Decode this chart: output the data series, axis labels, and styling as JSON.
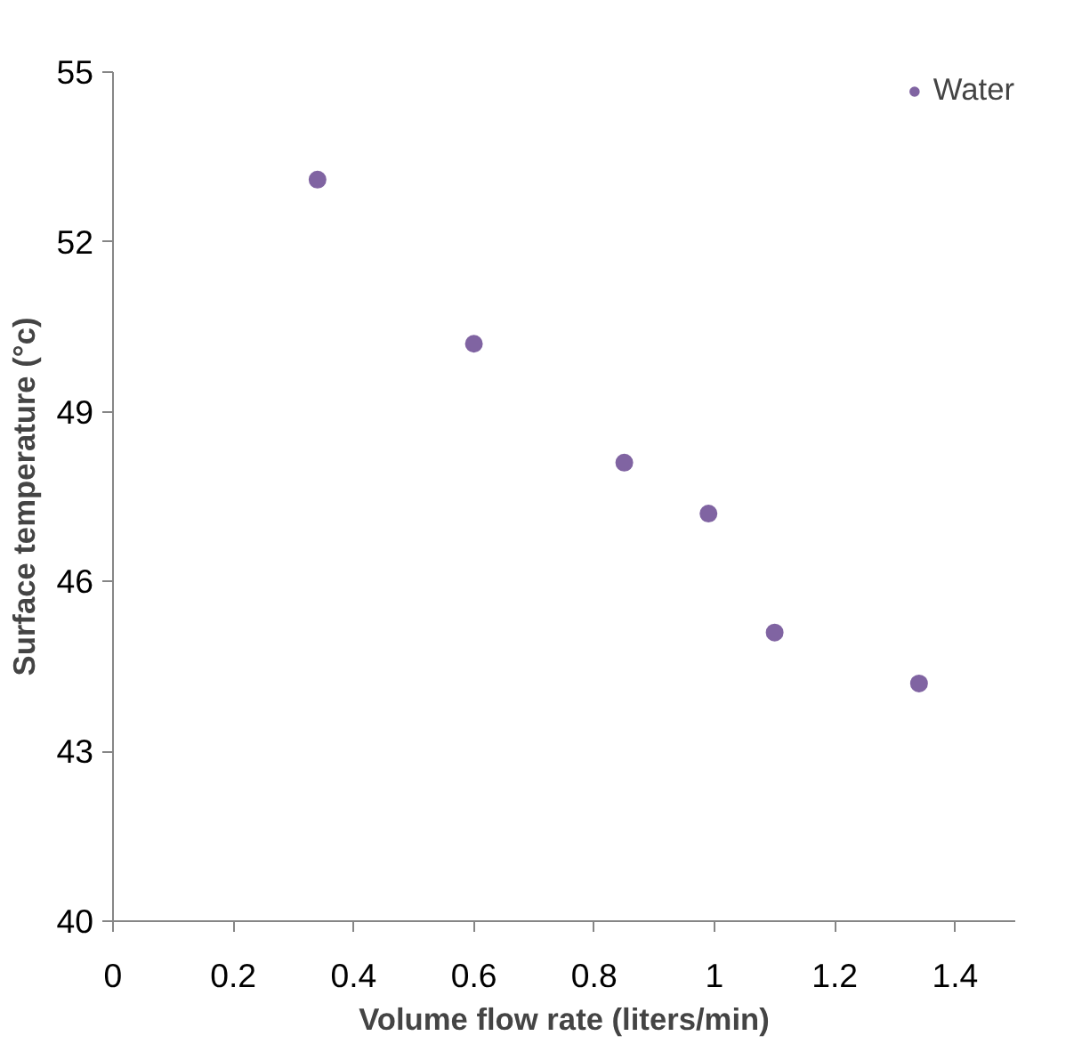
{
  "chart_data": {
    "type": "scatter",
    "xlabel": "Volume flow rate (liters/min)",
    "ylabel": "Surface temperature (°c)",
    "x": [
      0.34,
      0.6,
      0.85,
      0.99,
      1.1,
      1.34
    ],
    "series": [
      {
        "name": "Water",
        "color": "#8064a2",
        "values": [
          53.1,
          50.2,
          48.1,
          47.2,
          45.1,
          44.2
        ]
      }
    ],
    "xlim": [
      0,
      1.5
    ],
    "xticks": [
      0,
      0.2,
      0.4,
      0.6,
      0.8,
      1,
      1.2,
      1.4
    ],
    "ylim": [
      40,
      55
    ],
    "yticks": [
      40,
      43,
      46,
      49,
      52,
      55
    ],
    "grid": false,
    "legend": "top right",
    "marker": "circle"
  }
}
